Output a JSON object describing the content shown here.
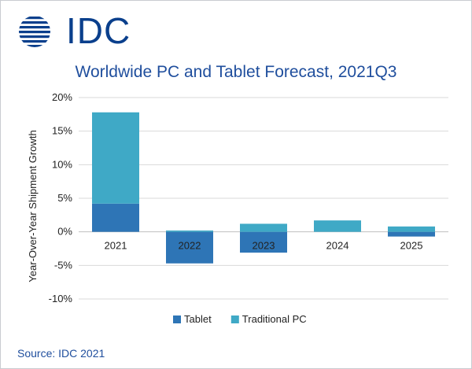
{
  "brand": {
    "name": "IDC",
    "color": "#0a3f8c"
  },
  "source": "Source: IDC 2021",
  "chart_data": {
    "type": "bar",
    "stacked": true,
    "title": "Worldwide PC and Tablet Forecast, 2021Q3",
    "xlabel": "",
    "ylabel": "Year-Over-Year  Shipment Growth",
    "categories": [
      "2021",
      "2022",
      "2023",
      "2024",
      "2025"
    ],
    "series": [
      {
        "name": "Tablet",
        "color": "#2e75b6",
        "values": [
          4.2,
          -4.7,
          -3.1,
          0.0,
          -0.7
        ]
      },
      {
        "name": "Traditional PC",
        "color": "#3fa9c6",
        "values": [
          13.6,
          0.2,
          1.2,
          1.7,
          0.8
        ]
      }
    ],
    "ylim": [
      -10,
      20
    ],
    "yticks": [
      -10,
      -5,
      0,
      5,
      10,
      15,
      20
    ],
    "ytick_labels": [
      "-10%",
      "-5%",
      "0%",
      "5%",
      "10%",
      "15%",
      "20%"
    ],
    "grid": true,
    "legend_position": "bottom"
  }
}
